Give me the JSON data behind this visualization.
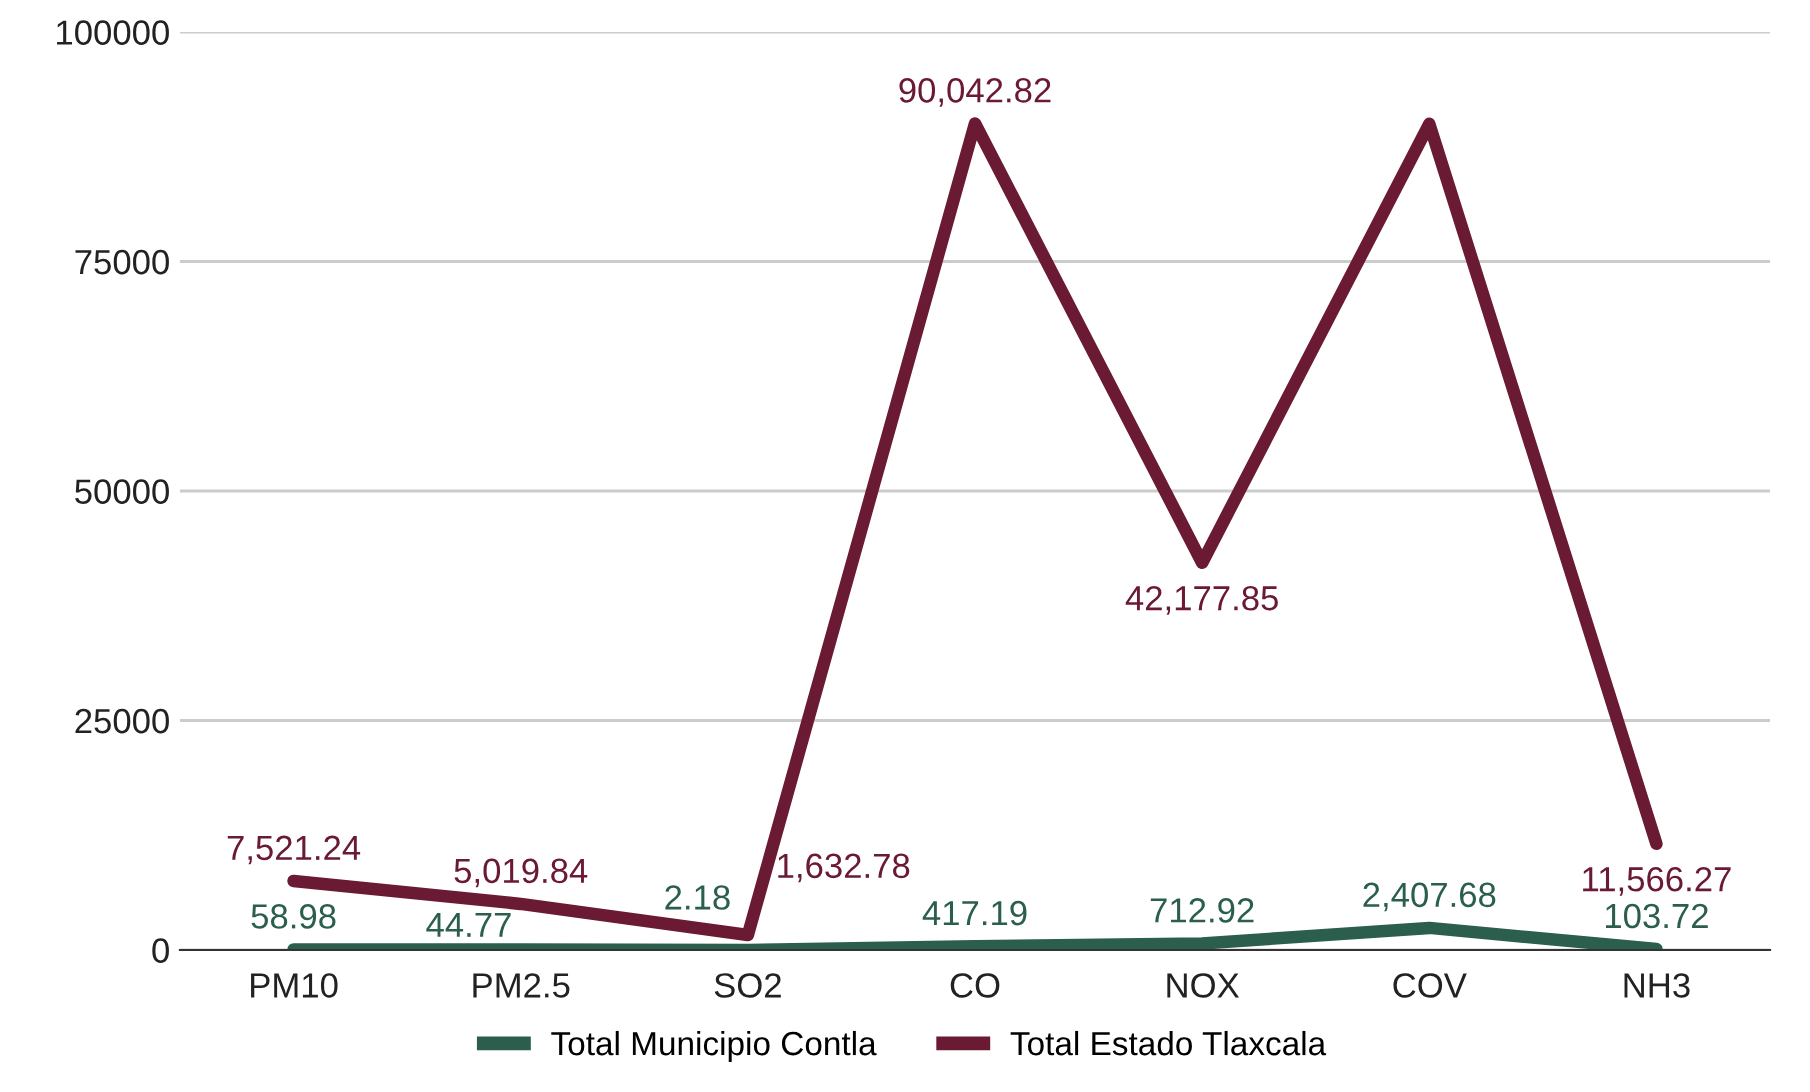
{
  "chart_data": {
    "type": "line",
    "categories": [
      "PM10",
      "PM2.5",
      "SO2",
      "CO",
      "NOX",
      "COV",
      "NH3"
    ],
    "series": [
      {
        "name": "Total Municipio Contla",
        "color": "#2b5e4c",
        "values": [
          58.98,
          44.77,
          2.18,
          417.19,
          712.92,
          2407.68,
          103.72
        ],
        "value_labels": [
          "58.98",
          "44.77",
          "2.18",
          "417.19",
          "712.92",
          "2,407.68",
          "103.72"
        ]
      },
      {
        "name": "Total Estado Tlaxcala",
        "color": "#6b1a33",
        "values": [
          7521.24,
          5019.84,
          1632.78,
          90042.82,
          42177.85,
          90000,
          11566.27
        ],
        "value_labels": [
          "7,521.24",
          "5,019.84",
          "1,632.78",
          "90,042.82",
          "42,177.85",
          null,
          "11,566.27"
        ]
      }
    ],
    "ylim": [
      0,
      100000
    ],
    "yticks": [
      0,
      25000,
      50000,
      75000,
      100000
    ],
    "grid": "y",
    "legend": "bottom",
    "marker": "none",
    "line_style": "solid"
  }
}
